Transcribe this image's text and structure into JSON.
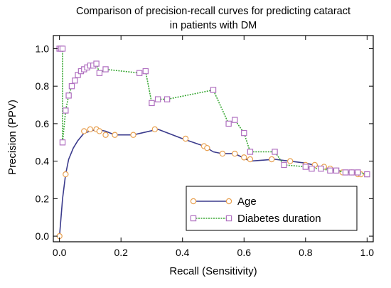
{
  "chart_data": {
    "type": "line",
    "title_lines": [
      "Comparison of precision-recall curves for predicting cataract",
      "in patients with DM"
    ],
    "xlabel": "Recall (Sensitivity)",
    "ylabel": "Precision (PPV)",
    "xlim": [
      0,
      1
    ],
    "ylim": [
      0,
      1
    ],
    "x_ticks": [
      0,
      0.2,
      0.4,
      0.6,
      0.8,
      1.0
    ],
    "x_tick_labels": [
      "0.0",
      "0.2",
      "0.4",
      "0.6",
      "0.8",
      "1.0"
    ],
    "y_ticks": [
      0,
      0.2,
      0.4,
      0.6,
      0.8,
      1.0
    ],
    "y_tick_labels": [
      "0.0",
      "0.2",
      "0.4",
      "0.6",
      "0.8",
      "1.0"
    ],
    "grid": false,
    "legend_position": "bottom-right",
    "series": [
      {
        "name": "Age",
        "line_color": "#3b3b8c",
        "line_style": "solid",
        "marker": "circle",
        "marker_color": "#e8a050",
        "curve": [
          [
            0.0,
            0.0
          ],
          [
            0.01,
            0.2
          ],
          [
            0.02,
            0.33
          ],
          [
            0.03,
            0.41
          ],
          [
            0.045,
            0.47
          ],
          [
            0.06,
            0.51
          ],
          [
            0.08,
            0.55
          ],
          [
            0.1,
            0.56
          ],
          [
            0.12,
            0.57
          ],
          [
            0.15,
            0.56
          ],
          [
            0.18,
            0.54
          ],
          [
            0.24,
            0.54
          ],
          [
            0.32,
            0.57
          ],
          [
            0.4,
            0.52
          ],
          [
            0.47,
            0.48
          ],
          [
            0.5,
            0.45
          ],
          [
            0.53,
            0.44
          ],
          [
            0.57,
            0.44
          ],
          [
            0.62,
            0.4
          ],
          [
            0.7,
            0.41
          ],
          [
            0.8,
            0.39
          ],
          [
            0.85,
            0.37
          ],
          [
            0.9,
            0.35
          ],
          [
            1.0,
            0.33
          ]
        ],
        "points": [
          [
            0.0,
            0.0
          ],
          [
            0.02,
            0.33
          ],
          [
            0.08,
            0.56
          ],
          [
            0.1,
            0.57
          ],
          [
            0.12,
            0.57
          ],
          [
            0.13,
            0.56
          ],
          [
            0.15,
            0.54
          ],
          [
            0.18,
            0.54
          ],
          [
            0.24,
            0.54
          ],
          [
            0.31,
            0.57
          ],
          [
            0.41,
            0.52
          ],
          [
            0.47,
            0.48
          ],
          [
            0.48,
            0.47
          ],
          [
            0.53,
            0.44
          ],
          [
            0.57,
            0.44
          ],
          [
            0.6,
            0.42
          ],
          [
            0.62,
            0.41
          ],
          [
            0.69,
            0.41
          ],
          [
            0.75,
            0.4
          ],
          [
            0.8,
            0.38
          ],
          [
            0.83,
            0.38
          ],
          [
            0.86,
            0.37
          ],
          [
            0.88,
            0.36
          ],
          [
            0.9,
            0.35
          ],
          [
            0.92,
            0.34
          ],
          [
            0.95,
            0.34
          ],
          [
            0.97,
            0.33
          ],
          [
            0.98,
            0.33
          ],
          [
            1.0,
            0.33
          ]
        ]
      },
      {
        "name": "Diabetes duration",
        "line_color": "#3aa835",
        "line_style": "dotted",
        "marker": "square",
        "marker_color": "#b070c0",
        "points": [
          [
            0.0,
            1.0
          ],
          [
            0.005,
            1.0
          ],
          [
            0.01,
            1.0
          ],
          [
            0.01,
            0.5
          ],
          [
            0.02,
            0.67
          ],
          [
            0.03,
            0.75
          ],
          [
            0.04,
            0.8
          ],
          [
            0.05,
            0.83
          ],
          [
            0.06,
            0.86
          ],
          [
            0.07,
            0.88
          ],
          [
            0.08,
            0.89
          ],
          [
            0.09,
            0.9
          ],
          [
            0.1,
            0.91
          ],
          [
            0.11,
            0.91
          ],
          [
            0.12,
            0.92
          ],
          [
            0.13,
            0.87
          ],
          [
            0.15,
            0.89
          ],
          [
            0.26,
            0.87
          ],
          [
            0.28,
            0.88
          ],
          [
            0.3,
            0.71
          ],
          [
            0.32,
            0.73
          ],
          [
            0.35,
            0.73
          ],
          [
            0.5,
            0.78
          ],
          [
            0.55,
            0.6
          ],
          [
            0.57,
            0.62
          ],
          [
            0.6,
            0.55
          ],
          [
            0.62,
            0.45
          ],
          [
            0.7,
            0.45
          ],
          [
            0.73,
            0.38
          ],
          [
            0.8,
            0.37
          ],
          [
            0.82,
            0.36
          ],
          [
            0.85,
            0.36
          ],
          [
            0.88,
            0.35
          ],
          [
            0.9,
            0.35
          ],
          [
            0.93,
            0.34
          ],
          [
            0.95,
            0.34
          ],
          [
            0.97,
            0.34
          ],
          [
            1.0,
            0.33
          ]
        ]
      }
    ]
  }
}
